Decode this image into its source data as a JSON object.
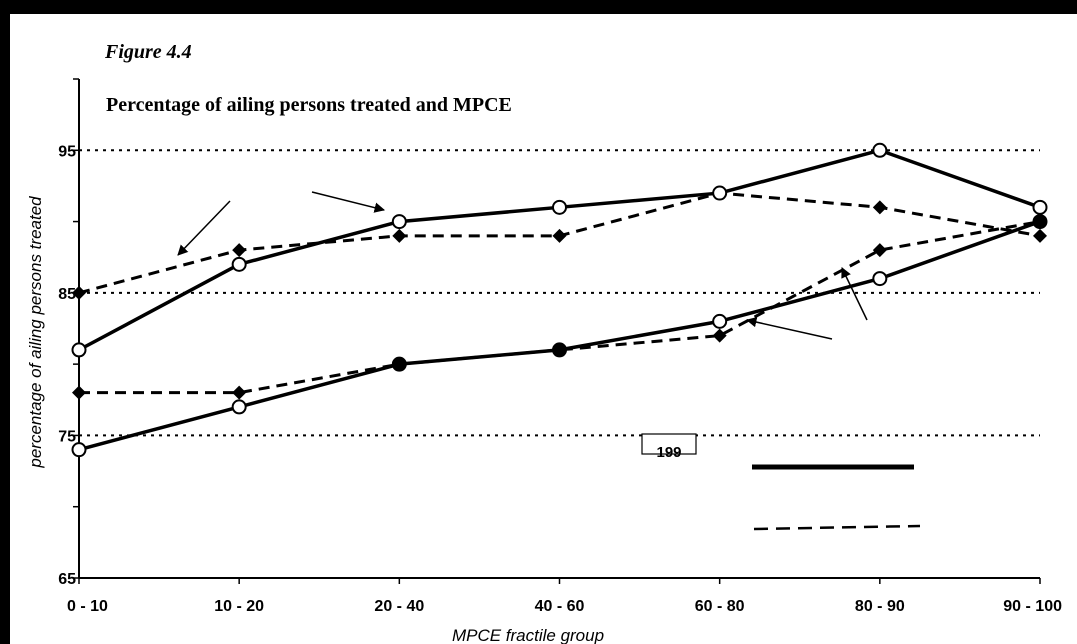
{
  "figure": {
    "label": "Figure 4.4",
    "title": "Percentage of ailing persons treated and MPCE"
  },
  "page_number": "199",
  "colors": {
    "background": "#ffffff",
    "frame": "#000000",
    "series": "#000000"
  },
  "chart_data": {
    "type": "line",
    "title": "Percentage of ailing persons treated and MPCE",
    "xlabel": "MPCE fractile group",
    "ylabel": "percentage of ailing persons treated",
    "categories": [
      "0 - 10",
      "10 - 20",
      "20 - 40",
      "40 - 60",
      "60 - 80",
      "80 - 90",
      "90 - 100"
    ],
    "ylim": [
      65,
      100
    ],
    "yticks": [
      65,
      75,
      85,
      95
    ],
    "grid": "dotted horizontal at 75, 85, 95",
    "legend": "bottom-right (line samples only, labels not shown)",
    "series": [
      {
        "style": "solid",
        "marker": "open-circle",
        "values": [
          81,
          87,
          90,
          91,
          92,
          95,
          91
        ]
      },
      {
        "style": "dashed",
        "marker": "diamond",
        "values": [
          85,
          88,
          89,
          89,
          92,
          91,
          89
        ]
      },
      {
        "style": "solid",
        "marker": "open-circle / filled-circle",
        "values": [
          74,
          77,
          80,
          81,
          83,
          86,
          90
        ]
      },
      {
        "style": "dashed",
        "marker": "diamond",
        "values": [
          78,
          78,
          80,
          81,
          82,
          88,
          90
        ]
      }
    ]
  }
}
